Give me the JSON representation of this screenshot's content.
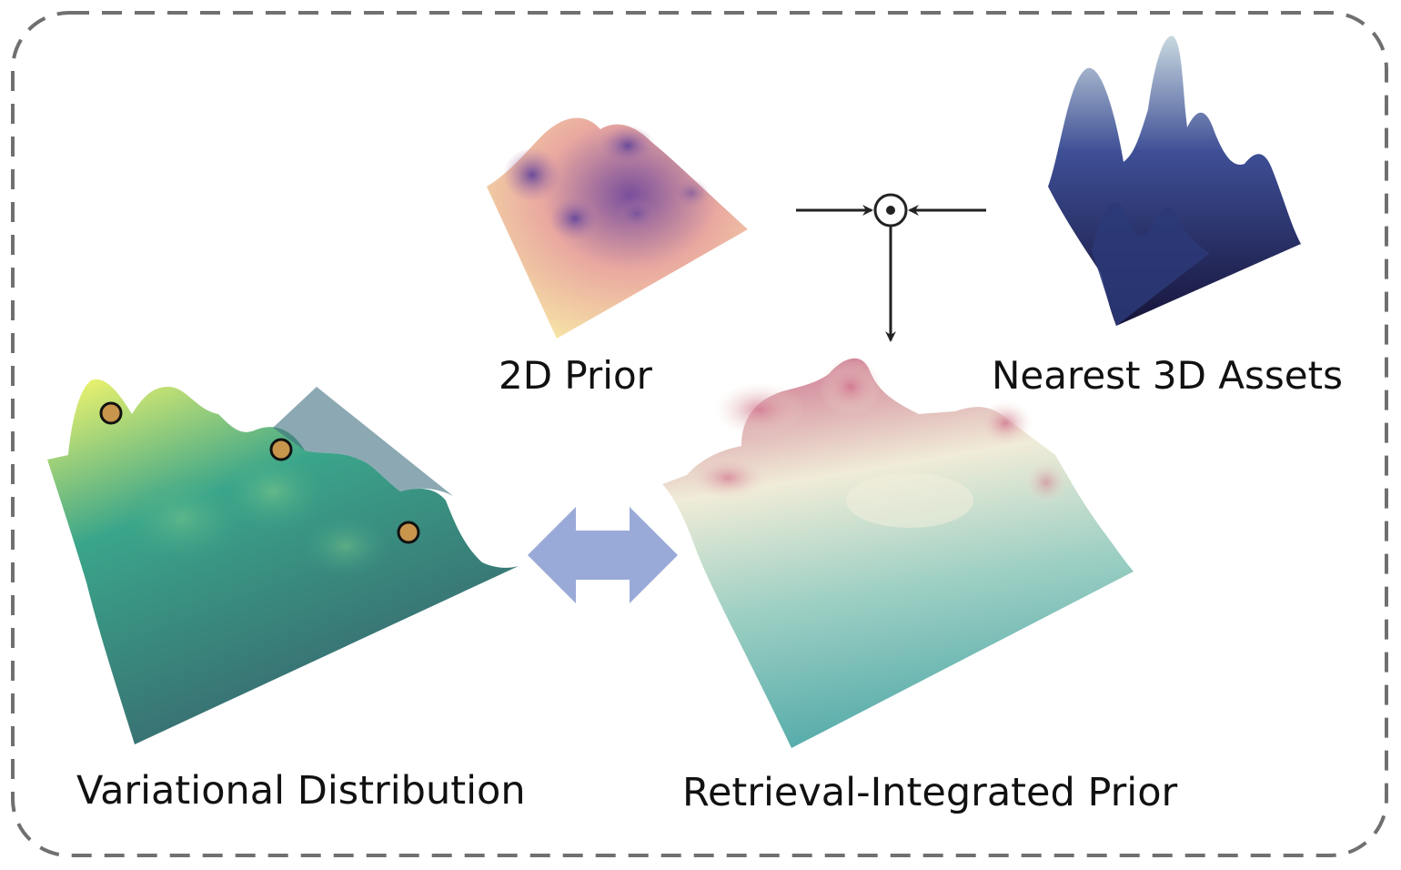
{
  "labels": {
    "prior_2d": "2D Prior",
    "nearest_3d": "Nearest 3D Assets",
    "variational": "Variational Distribution",
    "retrieval_prior": "Retrieval-Integrated Prior"
  },
  "colors": {
    "frame_dash": "#707070",
    "text": "#111111",
    "double_arrow": "#9aaad8",
    "operator_line": "#222222",
    "sample_point_fill": "#c8954c",
    "sample_point_stroke": "#111111",
    "prior_2d_low": "#f8eaa6",
    "prior_2d_mid": "#e9a8a0",
    "prior_2d_high": "#7a4f9c",
    "assets_3d_low": "#16143a",
    "assets_3d_mid": "#3e4f96",
    "assets_3d_high": "#c9d9e0",
    "variational_low": "#38626c",
    "variational_mid": "#3aa58a",
    "variational_high": "#e6f06e",
    "retrieval_low": "#4fa8a8",
    "retrieval_mid": "#f0ecd8",
    "retrieval_high": "#cf7c93"
  },
  "operator": {
    "symbol": "element-wise product (circle-dot)"
  },
  "sample_points": {
    "count": 3
  }
}
